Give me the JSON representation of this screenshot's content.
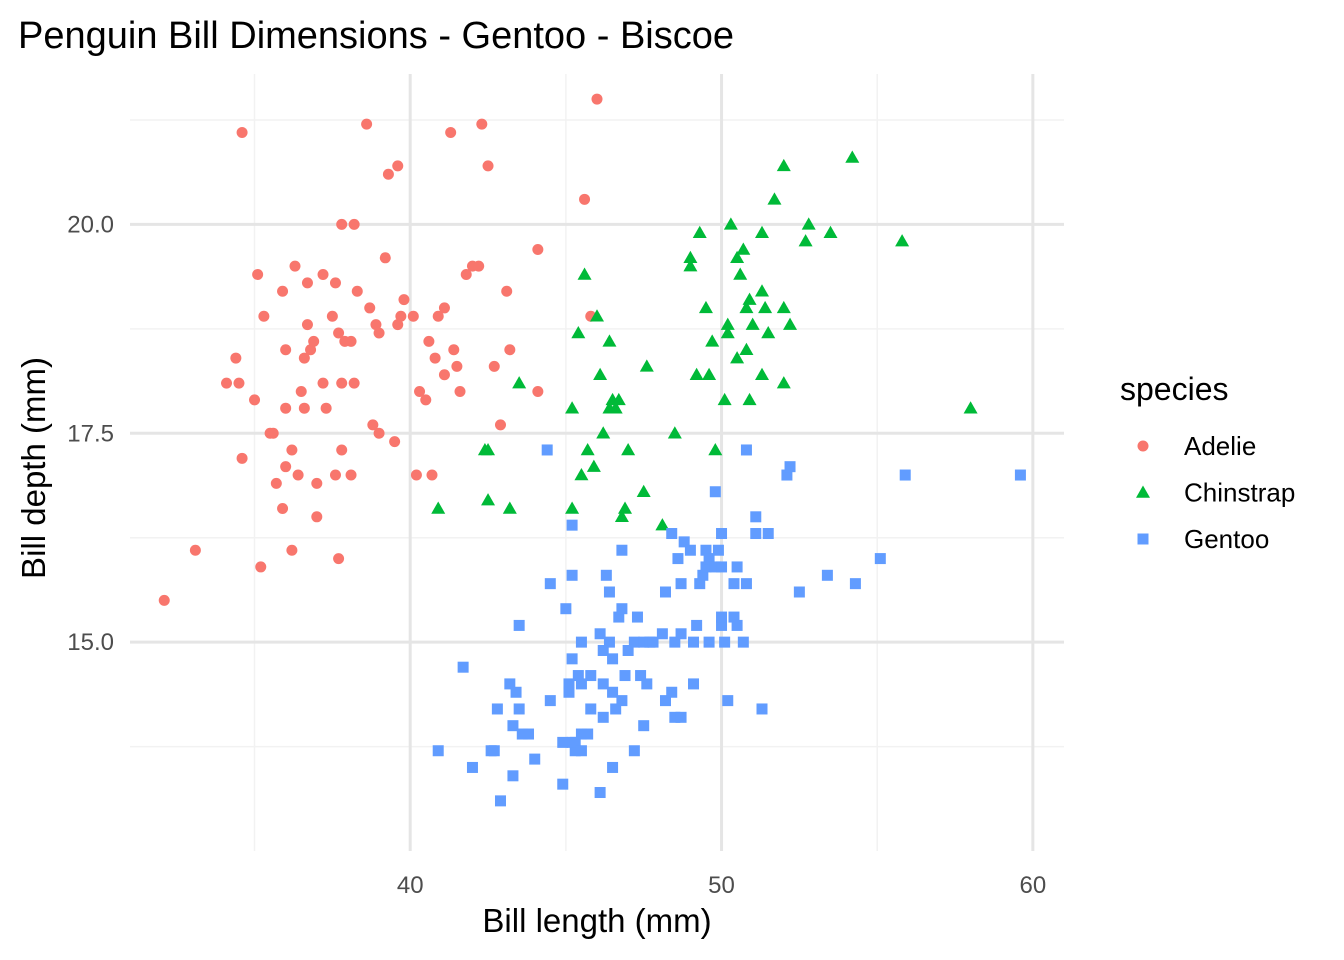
{
  "chart_data": {
    "type": "scatter",
    "title": "Penguin Bill Dimensions - Gentoo - Biscoe",
    "xlabel": "Bill length (mm)",
    "ylabel": "Bill depth (mm)",
    "xlim": [
      31,
      61
    ],
    "ylim": [
      12.5,
      21.8
    ],
    "x_ticks": [
      40,
      50,
      60
    ],
    "x_tick_labels": [
      "40",
      "50",
      "60"
    ],
    "y_ticks": [
      15,
      17.5,
      20
    ],
    "y_tick_labels": [
      "15.0",
      "17.5",
      "20.0"
    ],
    "grid": true,
    "legend": {
      "title": "species",
      "position": "right"
    },
    "series": [
      {
        "name": "Adelie",
        "color": "#F8766D",
        "marker": "circle",
        "points": [
          [
            32.1,
            15.5
          ],
          [
            33.1,
            16.1
          ],
          [
            34.1,
            18.1
          ],
          [
            34.4,
            18.4
          ],
          [
            34.5,
            18.1
          ],
          [
            34.6,
            21.1
          ],
          [
            34.6,
            17.2
          ],
          [
            35.0,
            17.9
          ],
          [
            35.1,
            19.4
          ],
          [
            35.2,
            15.9
          ],
          [
            35.3,
            18.9
          ],
          [
            35.5,
            17.5
          ],
          [
            35.6,
            17.5
          ],
          [
            35.7,
            16.9
          ],
          [
            35.9,
            16.6
          ],
          [
            35.9,
            19.2
          ],
          [
            36.0,
            17.8
          ],
          [
            36.0,
            17.1
          ],
          [
            36.0,
            18.5
          ],
          [
            36.2,
            16.1
          ],
          [
            36.2,
            17.3
          ],
          [
            36.3,
            19.5
          ],
          [
            36.4,
            17.0
          ],
          [
            36.5,
            18.0
          ],
          [
            36.6,
            17.8
          ],
          [
            36.7,
            19.3
          ],
          [
            36.7,
            18.8
          ],
          [
            36.8,
            18.5
          ],
          [
            36.9,
            18.6
          ],
          [
            37.0,
            16.9
          ],
          [
            37.0,
            16.5
          ],
          [
            37.2,
            18.1
          ],
          [
            37.3,
            17.8
          ],
          [
            37.5,
            18.9
          ],
          [
            37.6,
            17.0
          ],
          [
            37.7,
            18.7
          ],
          [
            37.7,
            16.0
          ],
          [
            37.8,
            17.3
          ],
          [
            37.8,
            18.1
          ],
          [
            37.9,
            18.6
          ],
          [
            38.1,
            18.6
          ],
          [
            38.1,
            17.0
          ],
          [
            38.2,
            18.1
          ],
          [
            38.6,
            21.2
          ],
          [
            38.7,
            19.0
          ],
          [
            38.8,
            17.6
          ],
          [
            39.0,
            18.7
          ],
          [
            39.2,
            19.6
          ],
          [
            39.5,
            17.4
          ],
          [
            39.6,
            18.8
          ],
          [
            39.7,
            18.9
          ],
          [
            39.8,
            19.1
          ],
          [
            40.2,
            17.0
          ],
          [
            40.3,
            18.0
          ],
          [
            40.5,
            17.9
          ],
          [
            40.6,
            18.6
          ],
          [
            40.7,
            17.0
          ],
          [
            40.9,
            18.9
          ],
          [
            41.1,
            19.0
          ],
          [
            41.1,
            18.2
          ],
          [
            41.3,
            21.1
          ],
          [
            41.4,
            18.5
          ],
          [
            41.5,
            18.3
          ],
          [
            41.6,
            18.0
          ],
          [
            41.8,
            19.4
          ],
          [
            42.0,
            19.5
          ],
          [
            42.2,
            19.5
          ],
          [
            42.3,
            21.2
          ],
          [
            42.5,
            20.7
          ],
          [
            42.7,
            18.3
          ],
          [
            42.9,
            17.6
          ],
          [
            43.1,
            19.2
          ],
          [
            43.2,
            18.5
          ],
          [
            44.1,
            18.0
          ],
          [
            44.1,
            19.7
          ],
          [
            45.6,
            20.3
          ],
          [
            45.8,
            18.9
          ],
          [
            46.0,
            21.5
          ],
          [
            38.2,
            20.0
          ],
          [
            39.6,
            20.7
          ],
          [
            40.1,
            18.9
          ],
          [
            37.8,
            20.0
          ],
          [
            38.3,
            19.2
          ],
          [
            36.6,
            18.4
          ],
          [
            38.9,
            18.8
          ],
          [
            37.2,
            19.4
          ],
          [
            40.8,
            18.4
          ],
          [
            37.6,
            19.3
          ],
          [
            39.3,
            20.6
          ],
          [
            39.0,
            17.5
          ]
        ]
      },
      {
        "name": "Chinstrap",
        "color": "#00BA38",
        "marker": "triangle",
        "points": [
          [
            40.9,
            16.6
          ],
          [
            42.4,
            17.3
          ],
          [
            42.5,
            16.7
          ],
          [
            42.5,
            17.3
          ],
          [
            43.2,
            16.6
          ],
          [
            43.5,
            18.1
          ],
          [
            45.2,
            16.6
          ],
          [
            45.2,
            17.8
          ],
          [
            45.4,
            18.7
          ],
          [
            45.5,
            17.0
          ],
          [
            45.6,
            19.4
          ],
          [
            45.7,
            17.3
          ],
          [
            45.9,
            17.1
          ],
          [
            46.0,
            18.9
          ],
          [
            46.1,
            18.2
          ],
          [
            46.2,
            17.5
          ],
          [
            46.4,
            18.6
          ],
          [
            46.4,
            17.8
          ],
          [
            46.5,
            17.9
          ],
          [
            46.6,
            17.8
          ],
          [
            46.7,
            17.9
          ],
          [
            46.8,
            16.5
          ],
          [
            46.9,
            16.6
          ],
          [
            47.0,
            17.3
          ],
          [
            47.5,
            16.8
          ],
          [
            47.6,
            18.3
          ],
          [
            48.1,
            16.4
          ],
          [
            48.5,
            17.5
          ],
          [
            49.0,
            19.5
          ],
          [
            49.0,
            19.6
          ],
          [
            49.2,
            18.2
          ],
          [
            49.3,
            19.9
          ],
          [
            49.5,
            19.0
          ],
          [
            49.6,
            18.2
          ],
          [
            49.7,
            18.6
          ],
          [
            49.8,
            17.3
          ],
          [
            50.1,
            17.9
          ],
          [
            50.2,
            18.8
          ],
          [
            50.2,
            18.7
          ],
          [
            50.3,
            20.0
          ],
          [
            50.5,
            19.6
          ],
          [
            50.5,
            18.4
          ],
          [
            50.6,
            19.4
          ],
          [
            50.7,
            19.7
          ],
          [
            50.8,
            18.5
          ],
          [
            50.8,
            19.0
          ],
          [
            50.9,
            19.1
          ],
          [
            50.9,
            17.9
          ],
          [
            51.0,
            18.8
          ],
          [
            51.3,
            18.2
          ],
          [
            51.3,
            19.2
          ],
          [
            51.3,
            19.9
          ],
          [
            51.4,
            19.0
          ],
          [
            51.5,
            18.7
          ],
          [
            51.7,
            20.3
          ],
          [
            52.0,
            18.1
          ],
          [
            52.0,
            19.0
          ],
          [
            52.0,
            20.7
          ],
          [
            52.2,
            18.8
          ],
          [
            52.7,
            19.8
          ],
          [
            52.8,
            20.0
          ],
          [
            53.5,
            19.9
          ],
          [
            54.2,
            20.8
          ],
          [
            55.8,
            19.8
          ],
          [
            58.0,
            17.8
          ]
        ]
      },
      {
        "name": "Gentoo",
        "color": "#619CFF",
        "marker": "square",
        "points": [
          [
            40.9,
            13.7
          ],
          [
            41.7,
            14.7
          ],
          [
            42.0,
            13.5
          ],
          [
            42.6,
            13.7
          ],
          [
            42.7,
            13.7
          ],
          [
            42.8,
            14.2
          ],
          [
            42.9,
            13.1
          ],
          [
            43.2,
            14.5
          ],
          [
            43.3,
            14.0
          ],
          [
            43.3,
            13.4
          ],
          [
            43.4,
            14.4
          ],
          [
            43.5,
            14.2
          ],
          [
            43.5,
            15.2
          ],
          [
            43.6,
            13.9
          ],
          [
            43.8,
            13.9
          ],
          [
            44.0,
            13.6
          ],
          [
            44.4,
            17.3
          ],
          [
            44.5,
            14.3
          ],
          [
            44.5,
            15.7
          ],
          [
            44.9,
            13.8
          ],
          [
            44.9,
            13.3
          ],
          [
            45.0,
            15.4
          ],
          [
            45.1,
            14.5
          ],
          [
            45.1,
            14.4
          ],
          [
            45.2,
            13.8
          ],
          [
            45.2,
            14.8
          ],
          [
            45.2,
            15.8
          ],
          [
            45.2,
            16.4
          ],
          [
            45.3,
            13.7
          ],
          [
            45.3,
            13.8
          ],
          [
            45.4,
            14.6
          ],
          [
            45.5,
            13.7
          ],
          [
            45.5,
            13.9
          ],
          [
            45.5,
            15.0
          ],
          [
            45.7,
            13.9
          ],
          [
            45.8,
            14.2
          ],
          [
            45.8,
            14.6
          ],
          [
            46.1,
            13.2
          ],
          [
            46.1,
            15.1
          ],
          [
            46.2,
            14.1
          ],
          [
            46.2,
            14.5
          ],
          [
            46.2,
            14.9
          ],
          [
            46.3,
            15.8
          ],
          [
            46.4,
            15.0
          ],
          [
            46.4,
            15.6
          ],
          [
            46.5,
            13.5
          ],
          [
            46.5,
            14.4
          ],
          [
            46.5,
            14.8
          ],
          [
            46.6,
            14.2
          ],
          [
            46.7,
            15.3
          ],
          [
            46.8,
            14.3
          ],
          [
            46.8,
            15.4
          ],
          [
            46.8,
            16.1
          ],
          [
            46.9,
            14.6
          ],
          [
            47.2,
            13.7
          ],
          [
            47.2,
            15.0
          ],
          [
            47.3,
            15.3
          ],
          [
            47.4,
            14.6
          ],
          [
            47.5,
            14.0
          ],
          [
            47.5,
            15.0
          ],
          [
            47.6,
            14.5
          ],
          [
            47.7,
            15.0
          ],
          [
            47.8,
            15.0
          ],
          [
            48.1,
            15.1
          ],
          [
            48.2,
            14.3
          ],
          [
            48.2,
            15.6
          ],
          [
            48.4,
            14.4
          ],
          [
            48.4,
            16.3
          ],
          [
            48.5,
            14.1
          ],
          [
            48.5,
            15.0
          ],
          [
            48.6,
            16.0
          ],
          [
            48.7,
            14.1
          ],
          [
            48.7,
            15.1
          ],
          [
            48.7,
            15.7
          ],
          [
            48.8,
            16.2
          ],
          [
            49.0,
            16.1
          ],
          [
            49.1,
            14.5
          ],
          [
            49.1,
            15.0
          ],
          [
            49.2,
            15.2
          ],
          [
            49.3,
            15.7
          ],
          [
            49.4,
            15.8
          ],
          [
            49.5,
            15.9
          ],
          [
            49.5,
            16.1
          ],
          [
            49.6,
            15.0
          ],
          [
            49.6,
            16.0
          ],
          [
            49.8,
            15.9
          ],
          [
            49.8,
            16.8
          ],
          [
            50.0,
            15.2
          ],
          [
            50.0,
            15.3
          ],
          [
            50.0,
            15.9
          ],
          [
            50.0,
            16.3
          ],
          [
            50.1,
            15.0
          ],
          [
            50.2,
            14.3
          ],
          [
            50.4,
            15.3
          ],
          [
            50.4,
            15.7
          ],
          [
            50.5,
            15.2
          ],
          [
            50.5,
            15.9
          ],
          [
            50.7,
            15.0
          ],
          [
            50.8,
            15.7
          ],
          [
            50.8,
            17.3
          ],
          [
            51.1,
            16.3
          ],
          [
            51.1,
            16.5
          ],
          [
            51.3,
            14.2
          ],
          [
            51.5,
            16.3
          ],
          [
            52.1,
            17.0
          ],
          [
            52.2,
            17.1
          ],
          [
            52.5,
            15.6
          ],
          [
            53.4,
            15.8
          ],
          [
            54.3,
            15.7
          ],
          [
            55.1,
            16.0
          ],
          [
            55.9,
            17.0
          ],
          [
            59.6,
            17.0
          ],
          [
            49.9,
            16.1
          ],
          [
            47.0,
            14.9
          ],
          [
            45.5,
            14.5
          ]
        ]
      }
    ]
  }
}
